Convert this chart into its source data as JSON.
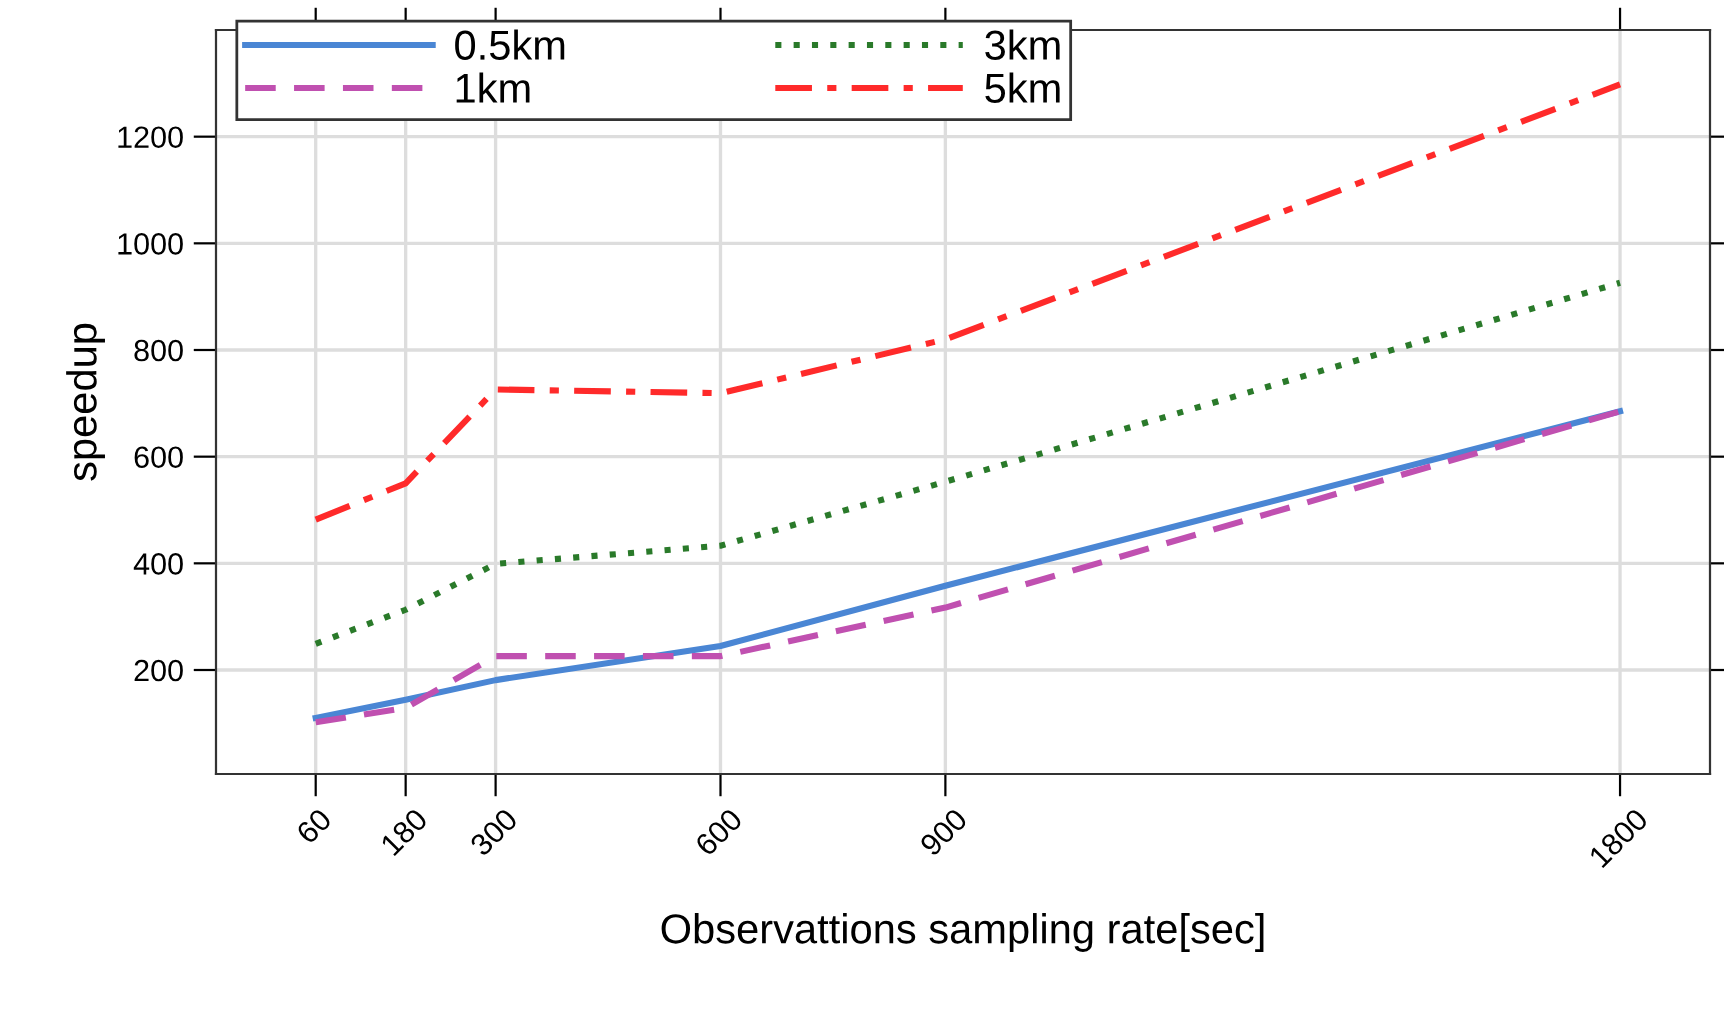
{
  "chart_data": {
    "type": "line",
    "xlabel": "Observattions sampling rate[sec]",
    "ylabel": "speedup",
    "x": [
      60,
      180,
      300,
      600,
      900,
      1800
    ],
    "series": [
      {
        "name": "0.5km",
        "color": "#4a86d4",
        "line_style": "solid",
        "values": [
          110,
          144,
          181,
          245,
          358,
          685
        ]
      },
      {
        "name": "1km",
        "color": "#c050b0",
        "line_style": "dashed",
        "values": [
          102,
          129,
          226,
          226,
          317,
          685
        ]
      },
      {
        "name": "3km",
        "color": "#2a7a2a",
        "line_style": "dotted",
        "values": [
          249,
          313,
          399,
          433,
          553,
          926
        ]
      },
      {
        "name": "5km",
        "color": "#ff2a2a",
        "line_style": "dashdot",
        "values": [
          482,
          550,
          726,
          719,
          820,
          1298
        ]
      }
    ],
    "xlim": [
      -73,
      1920
    ],
    "xticks": [
      60,
      180,
      300,
      600,
      900,
      1800
    ],
    "ylim": [
      5,
      1400
    ],
    "yticks": [
      200,
      400,
      600,
      800,
      1000,
      1200
    ],
    "grid": true,
    "legend": "top",
    "marker": "none"
  }
}
